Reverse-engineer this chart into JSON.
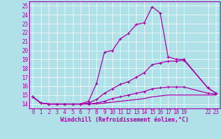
{
  "xlabel": "Windchill (Refroidissement éolien,°C)",
  "ylabel": "",
  "bg_color": "#b0e0e8",
  "grid_color": "#ffffff",
  "line_color": "#aa00aa",
  "xticks": [
    0,
    1,
    2,
    3,
    4,
    5,
    6,
    7,
    8,
    9,
    10,
    11,
    12,
    13,
    14,
    15,
    16,
    17,
    18,
    19,
    22,
    23
  ],
  "yticks": [
    14,
    15,
    16,
    17,
    18,
    19,
    20,
    21,
    22,
    23,
    24,
    25
  ],
  "xlim": [
    -0.5,
    23.5
  ],
  "ylim": [
    13.5,
    25.5
  ],
  "lines": [
    {
      "x": [
        0,
        1,
        2,
        3,
        4,
        5,
        6,
        7,
        8,
        9,
        10,
        11,
        12,
        13,
        14,
        15,
        16,
        17,
        18,
        19,
        22,
        23
      ],
      "y": [
        14.8,
        14.1,
        14.0,
        14.0,
        14.0,
        14.0,
        14.0,
        14.3,
        16.3,
        19.8,
        20.0,
        21.3,
        21.9,
        22.9,
        23.1,
        24.9,
        24.2,
        19.3,
        19.0,
        19.0,
        15.8,
        15.2
      ],
      "marker": "+"
    },
    {
      "x": [
        0,
        1,
        2,
        3,
        4,
        5,
        6,
        7,
        8,
        9,
        10,
        11,
        12,
        13,
        14,
        15,
        16,
        17,
        18,
        19,
        22,
        23
      ],
      "y": [
        14.8,
        14.1,
        14.0,
        14.0,
        14.0,
        14.0,
        14.0,
        14.1,
        14.5,
        15.2,
        15.7,
        16.2,
        16.5,
        17.0,
        17.5,
        18.4,
        18.6,
        18.8,
        18.8,
        18.9,
        15.8,
        15.2
      ],
      "marker": "+"
    },
    {
      "x": [
        0,
        1,
        2,
        3,
        4,
        5,
        6,
        7,
        8,
        9,
        10,
        11,
        12,
        13,
        14,
        15,
        16,
        17,
        18,
        19,
        22,
        23
      ],
      "y": [
        14.8,
        14.1,
        14.0,
        14.0,
        14.0,
        14.0,
        14.0,
        14.0,
        14.1,
        14.3,
        14.6,
        14.8,
        15.0,
        15.2,
        15.4,
        15.7,
        15.8,
        15.9,
        15.9,
        15.9,
        15.2,
        15.1
      ],
      "marker": "+"
    },
    {
      "x": [
        0,
        1,
        2,
        3,
        4,
        5,
        6,
        7,
        8,
        9,
        10,
        11,
        12,
        13,
        14,
        15,
        16,
        17,
        18,
        19,
        22,
        23
      ],
      "y": [
        14.8,
        14.1,
        14.0,
        14.0,
        14.0,
        14.0,
        14.0,
        14.0,
        14.0,
        14.1,
        14.2,
        14.3,
        14.4,
        14.5,
        14.6,
        14.8,
        14.9,
        15.0,
        15.0,
        15.0,
        15.0,
        15.0
      ],
      "marker": null
    }
  ],
  "tick_fontsize": 5.5,
  "xlabel_fontsize": 6,
  "lw": 0.9,
  "marker_size": 3
}
